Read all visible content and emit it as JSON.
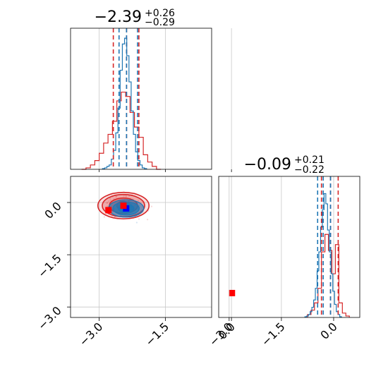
{
  "chart_data": {
    "type": "corner",
    "colors": {
      "blue": "#1f77b4",
      "red": "#d62728",
      "blue_marker": "#0000ff",
      "red_marker": "#ff0000",
      "grid": "#c8c8c8"
    },
    "parameters": [
      {
        "title_main": "−2.39",
        "title_sup": "+0.26",
        "title_sub": "−0.29",
        "range": [
          -3.65,
          -0.45
        ],
        "tick_values": [
          -3.0,
          -1.5,
          0.0
        ],
        "tick_labels": [
          "−3.0",
          "−1.5",
          "0.0"
        ]
      },
      {
        "title_main": "−0.09",
        "title_sup": "+0.21",
        "title_sub": "−0.22",
        "range": [
          -3.3,
          0.75
        ],
        "tick_values": [
          -3.0,
          -1.5,
          0.0
        ],
        "tick_labels": [
          "−3.0",
          "−1.5",
          "0.0"
        ]
      }
    ],
    "hist1": {
      "blue": {
        "bins_x": [
          -2.9,
          -2.85,
          -2.8,
          -2.75,
          -2.7,
          -2.65,
          -2.6,
          -2.55,
          -2.5,
          -2.45,
          -2.4,
          -2.35,
          -2.3,
          -2.25,
          -2.2,
          -2.15,
          -2.1,
          -2.05,
          -2.0,
          -1.95
        ],
        "counts": [
          0.005,
          0.01,
          0.02,
          0.03,
          0.07,
          0.13,
          0.25,
          0.42,
          0.68,
          0.86,
          0.9,
          0.78,
          0.6,
          0.4,
          0.24,
          0.12,
          0.06,
          0.03,
          0.01,
          0.005
        ]
      },
      "red": {
        "bins_x": [
          -3.35,
          -3.25,
          -3.15,
          -3.05,
          -2.95,
          -2.85,
          -2.75,
          -2.65,
          -2.55,
          -2.45,
          -2.35,
          -2.25,
          -2.15,
          -2.05,
          -1.95,
          -1.85,
          -1.75,
          -1.65
        ],
        "counts": [
          0.0,
          0.01,
          0.03,
          0.06,
          0.11,
          0.18,
          0.24,
          0.33,
          0.47,
          0.53,
          0.5,
          0.39,
          0.29,
          0.22,
          0.1,
          0.05,
          0.02,
          0.0
        ]
      },
      "blue_quantiles": [
        -2.55,
        -2.38,
        -2.13
      ],
      "red_quantiles": [
        -2.68,
        -2.38,
        -2.1
      ]
    },
    "hist2": {
      "blue": {
        "bins_x": [
          -0.8,
          -0.75,
          -0.7,
          -0.65,
          -0.6,
          -0.55,
          -0.5,
          -0.45,
          -0.4,
          -0.35,
          -0.3,
          -0.25,
          -0.2,
          -0.15,
          -0.1,
          -0.05,
          0.0,
          0.05,
          0.1,
          0.15,
          0.2
        ],
        "counts": [
          0.005,
          0.01,
          0.02,
          0.04,
          0.07,
          0.12,
          0.2,
          0.32,
          0.45,
          0.62,
          0.74,
          0.85,
          0.78,
          0.6,
          0.45,
          0.3,
          0.18,
          0.09,
          0.04,
          0.02,
          0.005
        ]
      },
      "red": {
        "bins_x": [
          -0.7,
          -0.6,
          -0.5,
          -0.4,
          -0.3,
          -0.2,
          -0.1,
          0.0,
          0.1,
          0.2,
          0.3,
          0.4
        ],
        "counts": [
          0.02,
          0.05,
          0.1,
          0.2,
          0.45,
          0.57,
          0.46,
          0.3,
          0.5,
          0.1,
          0.03,
          0.01
        ]
      },
      "blue_quantiles": [
        -0.46,
        -0.3,
        -0.09
      ],
      "red_quantiles": [
        -0.35,
        -0.09,
        0.13
      ]
    },
    "contours2d": {
      "blue": {
        "center": [
          -2.39,
          -0.17
        ],
        "levels": [
          [
            0.4,
            0.25
          ],
          [
            0.3,
            0.19
          ],
          [
            0.18,
            0.12
          ]
        ]
      },
      "red": {
        "center": [
          -2.45,
          -0.09
        ],
        "levels": [
          [
            0.58,
            0.38
          ],
          [
            0.48,
            0.32
          ],
          [
            0.32,
            0.22
          ],
          [
            0.15,
            0.12
          ]
        ]
      }
    },
    "markers": [
      {
        "color": "blue",
        "x": -2.39,
        "y": -0.17
      },
      {
        "color": "red",
        "x": -2.45,
        "y": -0.09
      },
      {
        "color": "red",
        "x": -2.79,
        "y": -0.22
      },
      {
        "color": "red",
        "x": 0.01,
        "y": -2.6
      }
    ]
  }
}
